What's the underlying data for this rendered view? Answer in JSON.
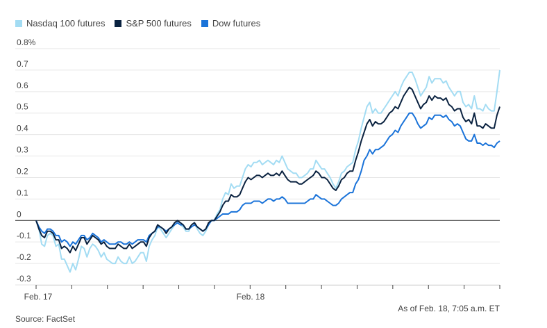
{
  "chart_data": {
    "type": "line",
    "ylim": [
      -0.3,
      0.8
    ],
    "y_ticks": [
      "0.8%",
      "0.7",
      "0.6",
      "0.5",
      "0.4",
      "0.3",
      "0.2",
      "0.1",
      "0",
      "-0.1",
      "-0.2",
      "-0.3"
    ],
    "x_labels": [
      "Feb. 17",
      "Feb. 18"
    ],
    "grid": "horizontal",
    "legend_placement": "top-left",
    "series": [
      {
        "name": "Nasdaq 100 futures",
        "color": "#a3dcf3",
        "values": [
          0.0,
          -0.04,
          -0.11,
          -0.12,
          -0.07,
          -0.06,
          -0.07,
          -0.12,
          -0.11,
          -0.18,
          -0.18,
          -0.21,
          -0.24,
          -0.2,
          -0.23,
          -0.18,
          -0.12,
          -0.13,
          -0.17,
          -0.13,
          -0.11,
          -0.12,
          -0.14,
          -0.17,
          -0.15,
          -0.18,
          -0.19,
          -0.2,
          -0.2,
          -0.17,
          -0.19,
          -0.2,
          -0.2,
          -0.17,
          -0.2,
          -0.19,
          -0.17,
          -0.15,
          -0.15,
          -0.19,
          -0.12,
          -0.09,
          -0.07,
          -0.03,
          -0.04,
          -0.06,
          -0.08,
          -0.06,
          -0.04,
          -0.02,
          -0.01,
          -0.02,
          -0.03,
          -0.05,
          -0.05,
          -0.02,
          -0.01,
          -0.04,
          -0.06,
          -0.07,
          -0.05,
          -0.02,
          0.0,
          0.0,
          0.03,
          0.05,
          0.1,
          0.13,
          0.12,
          0.17,
          0.15,
          0.16,
          0.16,
          0.2,
          0.24,
          0.26,
          0.25,
          0.27,
          0.27,
          0.28,
          0.26,
          0.27,
          0.28,
          0.27,
          0.26,
          0.28,
          0.27,
          0.3,
          0.27,
          0.24,
          0.23,
          0.22,
          0.22,
          0.2,
          0.2,
          0.21,
          0.22,
          0.24,
          0.24,
          0.28,
          0.26,
          0.24,
          0.24,
          0.22,
          0.2,
          0.17,
          0.15,
          0.18,
          0.22,
          0.23,
          0.25,
          0.26,
          0.27,
          0.33,
          0.37,
          0.43,
          0.48,
          0.53,
          0.55,
          0.5,
          0.52,
          0.5,
          0.5,
          0.52,
          0.54,
          0.56,
          0.58,
          0.6,
          0.58,
          0.62,
          0.65,
          0.67,
          0.69,
          0.69,
          0.66,
          0.62,
          0.58,
          0.6,
          0.62,
          0.67,
          0.64,
          0.66,
          0.66,
          0.66,
          0.64,
          0.65,
          0.62,
          0.6,
          0.58,
          0.6,
          0.6,
          0.55,
          0.53,
          0.54,
          0.52,
          0.58,
          0.52,
          0.52,
          0.51,
          0.54,
          0.52,
          0.51,
          0.51,
          0.6,
          0.7
        ],
        "y_label": "Nasdaq 100 futures"
      },
      {
        "name": "S&P 500 futures",
        "color": "#0a2240",
        "values": [
          0.0,
          -0.04,
          -0.07,
          -0.08,
          -0.05,
          -0.05,
          -0.06,
          -0.09,
          -0.09,
          -0.13,
          -0.12,
          -0.13,
          -0.15,
          -0.12,
          -0.14,
          -0.11,
          -0.08,
          -0.08,
          -0.11,
          -0.09,
          -0.07,
          -0.08,
          -0.09,
          -0.11,
          -0.1,
          -0.12,
          -0.13,
          -0.13,
          -0.13,
          -0.11,
          -0.12,
          -0.13,
          -0.13,
          -0.11,
          -0.13,
          -0.12,
          -0.11,
          -0.1,
          -0.1,
          -0.12,
          -0.08,
          -0.06,
          -0.05,
          -0.02,
          -0.03,
          -0.04,
          -0.06,
          -0.04,
          -0.03,
          -0.01,
          0.0,
          -0.01,
          -0.02,
          -0.04,
          -0.04,
          -0.02,
          -0.01,
          -0.03,
          -0.04,
          -0.05,
          -0.04,
          -0.01,
          0.0,
          0.0,
          0.02,
          0.04,
          0.07,
          0.09,
          0.09,
          0.12,
          0.11,
          0.11,
          0.12,
          0.15,
          0.18,
          0.2,
          0.19,
          0.2,
          0.21,
          0.21,
          0.2,
          0.21,
          0.22,
          0.21,
          0.21,
          0.22,
          0.21,
          0.23,
          0.21,
          0.19,
          0.18,
          0.18,
          0.18,
          0.17,
          0.17,
          0.18,
          0.19,
          0.2,
          0.21,
          0.23,
          0.22,
          0.2,
          0.2,
          0.19,
          0.17,
          0.15,
          0.14,
          0.16,
          0.19,
          0.2,
          0.22,
          0.23,
          0.23,
          0.28,
          0.32,
          0.37,
          0.41,
          0.45,
          0.47,
          0.44,
          0.46,
          0.45,
          0.45,
          0.46,
          0.48,
          0.5,
          0.51,
          0.53,
          0.52,
          0.55,
          0.58,
          0.6,
          0.62,
          0.61,
          0.58,
          0.55,
          0.52,
          0.54,
          0.55,
          0.58,
          0.56,
          0.58,
          0.57,
          0.57,
          0.56,
          0.57,
          0.54,
          0.53,
          0.51,
          0.52,
          0.52,
          0.48,
          0.46,
          0.47,
          0.45,
          0.5,
          0.44,
          0.44,
          0.43,
          0.45,
          0.44,
          0.43,
          0.43,
          0.49,
          0.53
        ],
        "y_label": "S&P 500 futures"
      },
      {
        "name": "Dow futures",
        "color": "#1a73d9",
        "values": [
          0.0,
          -0.03,
          -0.05,
          -0.06,
          -0.04,
          -0.04,
          -0.05,
          -0.07,
          -0.07,
          -0.1,
          -0.09,
          -0.1,
          -0.12,
          -0.1,
          -0.11,
          -0.09,
          -0.07,
          -0.07,
          -0.09,
          -0.08,
          -0.06,
          -0.07,
          -0.08,
          -0.1,
          -0.09,
          -0.1,
          -0.11,
          -0.11,
          -0.11,
          -0.1,
          -0.1,
          -0.11,
          -0.11,
          -0.1,
          -0.11,
          -0.1,
          -0.09,
          -0.09,
          -0.09,
          -0.1,
          -0.07,
          -0.06,
          -0.05,
          -0.03,
          -0.03,
          -0.04,
          -0.05,
          -0.04,
          -0.03,
          -0.02,
          -0.01,
          -0.02,
          -0.02,
          -0.04,
          -0.04,
          -0.03,
          -0.02,
          -0.03,
          -0.04,
          -0.05,
          -0.04,
          -0.02,
          0.0,
          0.0,
          0.01,
          0.02,
          0.03,
          0.03,
          0.03,
          0.04,
          0.04,
          0.04,
          0.05,
          0.07,
          0.08,
          0.08,
          0.08,
          0.09,
          0.09,
          0.09,
          0.08,
          0.09,
          0.1,
          0.1,
          0.09,
          0.1,
          0.1,
          0.11,
          0.1,
          0.08,
          0.08,
          0.08,
          0.08,
          0.08,
          0.08,
          0.08,
          0.09,
          0.1,
          0.1,
          0.12,
          0.11,
          0.1,
          0.1,
          0.09,
          0.08,
          0.07,
          0.07,
          0.08,
          0.1,
          0.11,
          0.12,
          0.13,
          0.13,
          0.17,
          0.19,
          0.23,
          0.28,
          0.3,
          0.33,
          0.31,
          0.33,
          0.33,
          0.34,
          0.35,
          0.37,
          0.39,
          0.4,
          0.42,
          0.41,
          0.44,
          0.46,
          0.48,
          0.5,
          0.5,
          0.48,
          0.45,
          0.43,
          0.44,
          0.45,
          0.48,
          0.47,
          0.49,
          0.49,
          0.49,
          0.48,
          0.49,
          0.47,
          0.46,
          0.44,
          0.45,
          0.44,
          0.41,
          0.38,
          0.37,
          0.37,
          0.4,
          0.36,
          0.36,
          0.35,
          0.36,
          0.35,
          0.35,
          0.34,
          0.36,
          0.37
        ],
        "y_label": "Dow futures"
      }
    ]
  },
  "legend": [
    {
      "label": "Nasdaq 100 futures",
      "color": "#a3dcf3"
    },
    {
      "label": "S&P 500 futures",
      "color": "#0a2240"
    },
    {
      "label": "Dow futures",
      "color": "#1a73d9"
    }
  ],
  "footer": {
    "asof": "As of Feb. 18, 7:05 a.m. ET",
    "source": "Source: FactSet"
  }
}
